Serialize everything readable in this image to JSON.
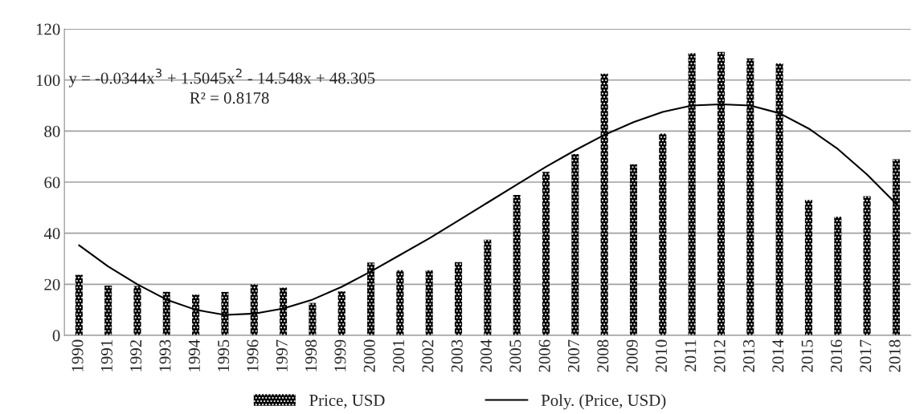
{
  "chart_data": {
    "type": "bar",
    "categories": [
      "1990",
      "1991",
      "1992",
      "1993",
      "1994",
      "1995",
      "1996",
      "1997",
      "1998",
      "1999",
      "2000",
      "2001",
      "2002",
      "2003",
      "2004",
      "2005",
      "2006",
      "2007",
      "2008",
      "2009",
      "2010",
      "2011",
      "2012",
      "2013",
      "2014",
      "2015",
      "2016",
      "2017",
      "2018"
    ],
    "series": [
      {
        "name": "Price, USD",
        "color": "#000000",
        "values": [
          23.7,
          19.5,
          19.3,
          17,
          15.9,
          17,
          20,
          18.7,
          12.7,
          17.2,
          28.5,
          25.5,
          25.5,
          28.7,
          37.5,
          55,
          64,
          71,
          102.5,
          67,
          79,
          110.5,
          111,
          108.5,
          106.5,
          53,
          46.5,
          54.5,
          69
        ]
      },
      {
        "name": "Poly. (Price, USD)",
        "type": "line",
        "color": "#000000",
        "values": [
          35.3,
          27,
          20,
          14,
          10,
          8,
          8.5,
          10.5,
          14,
          19,
          25,
          31.5,
          38,
          45,
          52,
          59,
          66,
          72.5,
          78.5,
          83.5,
          87.5,
          90,
          90.5,
          90,
          87,
          81,
          73,
          63,
          51.5
        ]
      }
    ],
    "ylim": [
      0,
      120
    ],
    "yticks": [
      0,
      20,
      40,
      60,
      80,
      100,
      120
    ],
    "grid": "y",
    "legend": "bottom",
    "marker": "none",
    "line_style": "solid",
    "annotations": [
      {
        "text": "y = -0.0344x$^{3}$ + 1.5045x$^{2}$ - 14.548x + 48.305"
      },
      {
        "text": "R² = 0.8178"
      }
    ]
  }
}
